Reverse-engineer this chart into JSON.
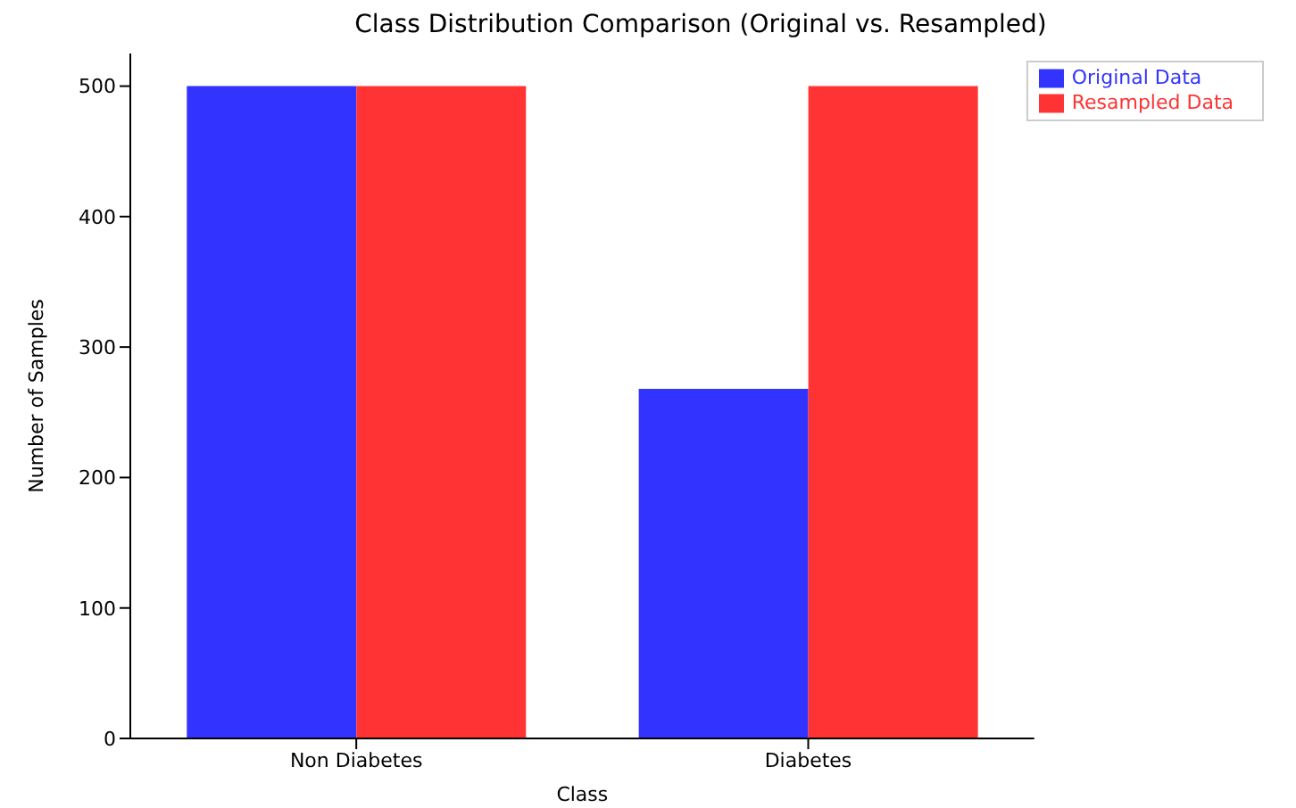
{
  "chart_data": {
    "type": "bar",
    "title": "Class Distribution Comparison (Original vs. Resampled)",
    "xlabel": "Class",
    "ylabel": "Number of Samples",
    "categories": [
      "Non Diabetes",
      "Diabetes"
    ],
    "series": [
      {
        "name": "Original Data",
        "color": "#3333ff",
        "values": [
          500,
          268
        ]
      },
      {
        "name": "Resampled Data",
        "color": "#ff3333",
        "values": [
          500,
          500
        ]
      }
    ],
    "ylim": [
      0,
      525
    ],
    "yticks": [
      0,
      100,
      200,
      300,
      400,
      500
    ],
    "grid": false,
    "legend": "top right"
  }
}
